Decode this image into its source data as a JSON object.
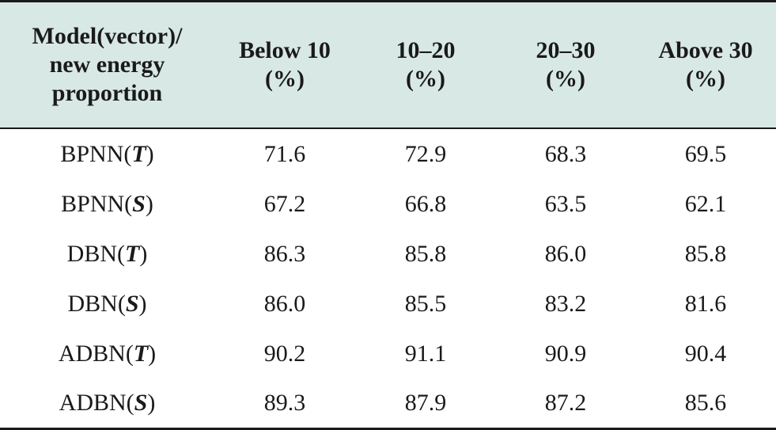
{
  "table": {
    "headers": [
      [
        "Model(vector)/",
        "new energy",
        "proportion"
      ],
      [
        "Below 10",
        "(%)"
      ],
      [
        "10–20",
        "(%)"
      ],
      [
        "20–30",
        "(%)"
      ],
      [
        "Above 30",
        "(%)"
      ]
    ],
    "rows": [
      {
        "model": "BPNN(",
        "vector": "T",
        "close": ")",
        "values": [
          "71.6",
          "72.9",
          "68.3",
          "69.5"
        ]
      },
      {
        "model": "BPNN(",
        "vector": "S",
        "close": ")",
        "values": [
          "67.2",
          "66.8",
          "63.5",
          "62.1"
        ]
      },
      {
        "model": "DBN(",
        "vector": "T",
        "close": ")",
        "values": [
          "86.3",
          "85.8",
          "86.0",
          "85.8"
        ]
      },
      {
        "model": "DBN(",
        "vector": "S",
        "close": ")",
        "values": [
          "86.0",
          "85.5",
          "83.2",
          "81.6"
        ]
      },
      {
        "model": "ADBN(",
        "vector": "T",
        "close": ")",
        "values": [
          "90.2",
          "91.1",
          "90.9",
          "90.4"
        ]
      },
      {
        "model": "ADBN(",
        "vector": "S",
        "close": ")",
        "values": [
          "89.3",
          "87.9",
          "87.2",
          "85.6"
        ]
      }
    ]
  },
  "colors": {
    "header_background": "#d8e8e4",
    "rule": "#1a1a1a",
    "text": "#1a1a1a"
  }
}
